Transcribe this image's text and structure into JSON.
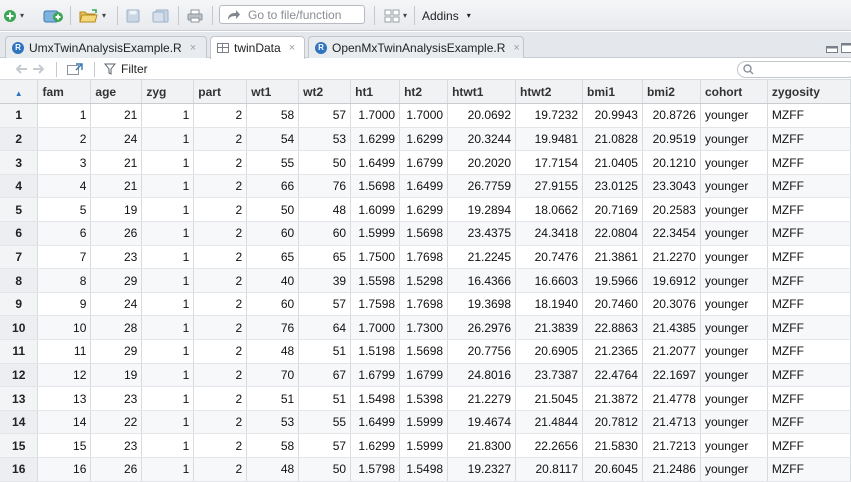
{
  "toolbar": {
    "goto_placeholder": "Go to file/function",
    "addins_label": "Addins",
    "addins_caret": "▾"
  },
  "tabs": [
    {
      "label": "UmxTwinAnalysisExample.R",
      "close": "×"
    },
    {
      "label": "twinData",
      "close": "×"
    },
    {
      "label": "OpenMxTwinAnalysisExample.R",
      "close": "×"
    }
  ],
  "filter": {
    "label": "Filter"
  },
  "table": {
    "sort_indicator": "▲",
    "columns": [
      "fam",
      "age",
      "zyg",
      "part",
      "wt1",
      "wt2",
      "ht1",
      "ht2",
      "htwt1",
      "htwt2",
      "bmi1",
      "bmi2",
      "cohort",
      "zygosity"
    ],
    "rows": [
      [
        "1",
        "1",
        "21",
        "1",
        "2",
        "58",
        "57",
        "1.7000",
        "1.7000",
        "20.0692",
        "19.7232",
        "20.9943",
        "20.8726",
        "younger",
        "MZFF"
      ],
      [
        "2",
        "2",
        "24",
        "1",
        "2",
        "54",
        "53",
        "1.6299",
        "1.6299",
        "20.3244",
        "19.9481",
        "21.0828",
        "20.9519",
        "younger",
        "MZFF"
      ],
      [
        "3",
        "3",
        "21",
        "1",
        "2",
        "55",
        "50",
        "1.6499",
        "1.6799",
        "20.2020",
        "17.7154",
        "21.0405",
        "20.1210",
        "younger",
        "MZFF"
      ],
      [
        "4",
        "4",
        "21",
        "1",
        "2",
        "66",
        "76",
        "1.5698",
        "1.6499",
        "26.7759",
        "27.9155",
        "23.0125",
        "23.3043",
        "younger",
        "MZFF"
      ],
      [
        "5",
        "5",
        "19",
        "1",
        "2",
        "50",
        "48",
        "1.6099",
        "1.6299",
        "19.2894",
        "18.0662",
        "20.7169",
        "20.2583",
        "younger",
        "MZFF"
      ],
      [
        "6",
        "6",
        "26",
        "1",
        "2",
        "60",
        "60",
        "1.5999",
        "1.5698",
        "23.4375",
        "24.3418",
        "22.0804",
        "22.3454",
        "younger",
        "MZFF"
      ],
      [
        "7",
        "7",
        "23",
        "1",
        "2",
        "65",
        "65",
        "1.7500",
        "1.7698",
        "21.2245",
        "20.7476",
        "21.3861",
        "21.2270",
        "younger",
        "MZFF"
      ],
      [
        "8",
        "8",
        "29",
        "1",
        "2",
        "40",
        "39",
        "1.5598",
        "1.5298",
        "16.4366",
        "16.6603",
        "19.5966",
        "19.6912",
        "younger",
        "MZFF"
      ],
      [
        "9",
        "9",
        "24",
        "1",
        "2",
        "60",
        "57",
        "1.7598",
        "1.7698",
        "19.3698",
        "18.1940",
        "20.7460",
        "20.3076",
        "younger",
        "MZFF"
      ],
      [
        "10",
        "10",
        "28",
        "1",
        "2",
        "76",
        "64",
        "1.7000",
        "1.7300",
        "26.2976",
        "21.3839",
        "22.8863",
        "21.4385",
        "younger",
        "MZFF"
      ],
      [
        "11",
        "11",
        "29",
        "1",
        "2",
        "48",
        "51",
        "1.5198",
        "1.5698",
        "20.7756",
        "20.6905",
        "21.2365",
        "21.2077",
        "younger",
        "MZFF"
      ],
      [
        "12",
        "12",
        "19",
        "1",
        "2",
        "70",
        "67",
        "1.6799",
        "1.6799",
        "24.8016",
        "23.7387",
        "22.4764",
        "22.1697",
        "younger",
        "MZFF"
      ],
      [
        "13",
        "13",
        "23",
        "1",
        "2",
        "51",
        "51",
        "1.5498",
        "1.5398",
        "21.2279",
        "21.5045",
        "21.3872",
        "21.4778",
        "younger",
        "MZFF"
      ],
      [
        "14",
        "14",
        "22",
        "1",
        "2",
        "53",
        "55",
        "1.6499",
        "1.5999",
        "19.4674",
        "21.4844",
        "20.7812",
        "21.4713",
        "younger",
        "MZFF"
      ],
      [
        "15",
        "15",
        "23",
        "1",
        "2",
        "58",
        "57",
        "1.6299",
        "1.5999",
        "21.8300",
        "22.2656",
        "21.5830",
        "21.7213",
        "younger",
        "MZFF"
      ],
      [
        "16",
        "16",
        "26",
        "1",
        "2",
        "48",
        "50",
        "1.5798",
        "1.5498",
        "19.2327",
        "20.8117",
        "20.6045",
        "21.2486",
        "younger",
        "MZFF"
      ]
    ]
  }
}
